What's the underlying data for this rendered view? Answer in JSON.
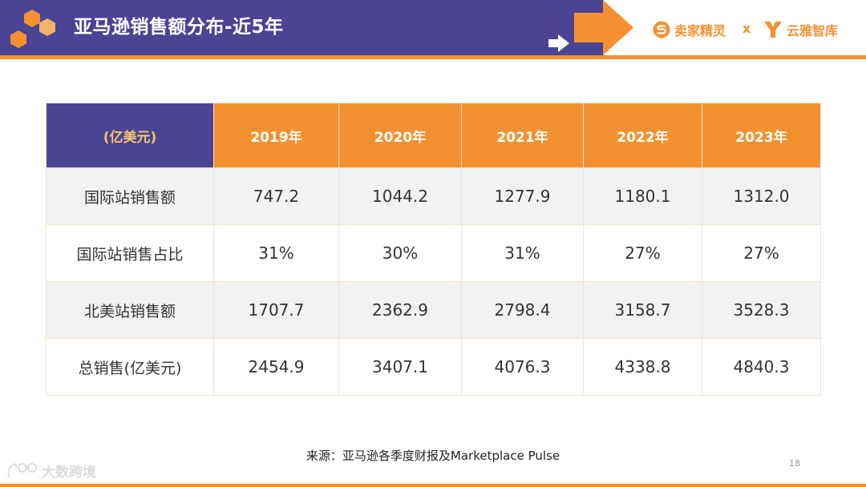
{
  "header": {
    "title": "亚马逊销售额分布-近5年",
    "brands": [
      {
        "icon": "s-logo-icon",
        "label": "卖家精灵"
      },
      {
        "icon": "y-logo-icon",
        "label": "云雅智库"
      }
    ],
    "separator": "x"
  },
  "table": {
    "corner_label": "(亿美元)",
    "columns": [
      "2019年",
      "2020年",
      "2021年",
      "2022年",
      "2023年"
    ],
    "rows": [
      {
        "label": "国际站销售额",
        "values": [
          "747.2",
          "1044.2",
          "1277.9",
          "1180.1",
          "1312.0"
        ]
      },
      {
        "label": "国际站销售占比",
        "values": [
          "31%",
          "30%",
          "31%",
          "27%",
          "27%"
        ]
      },
      {
        "label": "北美站销售额",
        "values": [
          "1707.7",
          "2362.9",
          "2798.4",
          "3158.7",
          "3528.3"
        ]
      },
      {
        "label": "总销售(亿美元)",
        "values": [
          "2454.9",
          "3407.1",
          "4076.3",
          "4338.8",
          "4840.3"
        ]
      }
    ]
  },
  "footer": {
    "source": "来源：亚马逊各季度财报及Marketplace Pulse",
    "page_number": "18",
    "watermark": "大数跨境"
  },
  "colors": {
    "header_purple": "#4B4494",
    "accent_orange": "#F39130",
    "corner_text": "#F6C46B",
    "shaded_row": "#F2F2F2"
  }
}
